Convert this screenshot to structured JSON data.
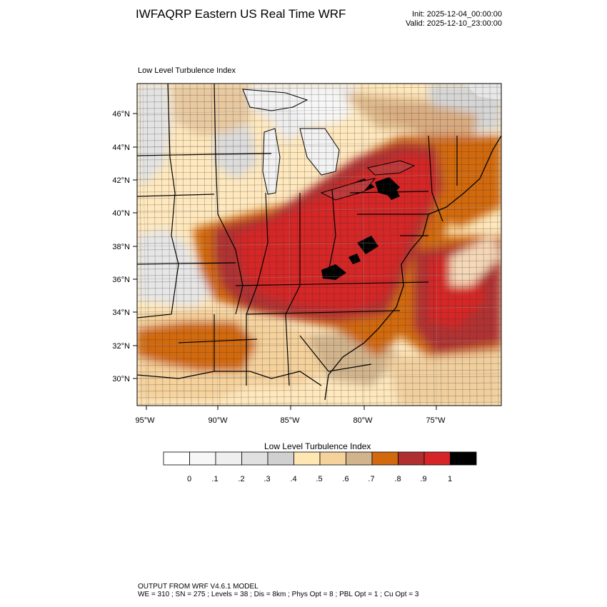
{
  "header": {
    "title": "IWFAQRP Eastern US Real Time WRF",
    "init": "Init: 2025-12-04_00:00:00",
    "valid": "Valid: 2025-12-10_23:00:00"
  },
  "panel": {
    "label": "Low Level Turbulence Index"
  },
  "map": {
    "lat_labels": [
      "46°N",
      "44°N",
      "42°N",
      "40°N",
      "38°N",
      "36°N",
      "34°N",
      "32°N",
      "30°N"
    ],
    "lon_labels": [
      "95°W",
      "90°W",
      "85°W",
      "80°W",
      "75°W"
    ]
  },
  "colorbar": {
    "title": "Low Level Turbulence Index",
    "ticks": [
      "0",
      ".1",
      ".2",
      ".3",
      ".4",
      ".5",
      ".6",
      ".7",
      ".8",
      ".9",
      "1"
    ],
    "colors": [
      "#ffffff",
      "#f7f7f7",
      "#efefef",
      "#e0e0e0",
      "#d0d0d0",
      "#ffe6b3",
      "#f5d19b",
      "#d2b48c",
      "#d2690e",
      "#b03030",
      "#d62528",
      "#000000"
    ]
  },
  "footer": {
    "line1": "OUTPUT FROM WRF V4.6.1 MODEL",
    "line2": "WE = 310 ; SN = 275 ; Levels = 38 ; Dis = 8km ; Phys Opt = 8 ; PBL Opt = 1 ; Cu Opt = 3"
  }
}
